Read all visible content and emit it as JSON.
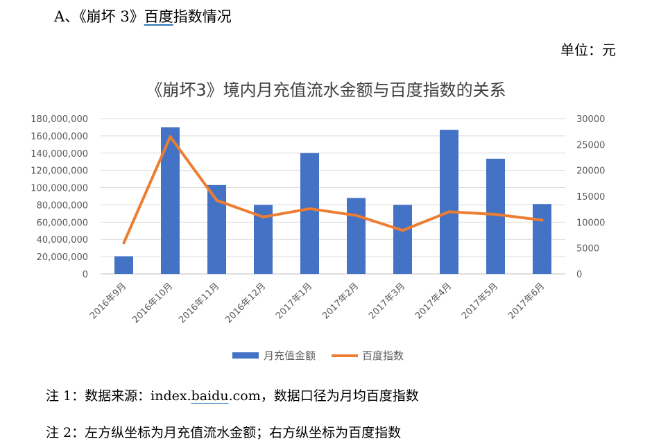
{
  "heading": {
    "prefix": "A、《崩坏 3》",
    "underlined": "百度",
    "suffix": "指数情况"
  },
  "unit_note": "单位：元",
  "notes": {
    "note1": {
      "prefix": "注 1：数据来源：index.",
      "underlined": "baidu",
      "suffix": ".com，数据口径为月均百度指数"
    },
    "note2": "注 2：左方纵坐标为月充值流水金额；右方纵坐标为百度指数"
  },
  "chart_data": {
    "type": "bar",
    "title": "《崩坏3》境内月充值流水金额与百度指数的关系",
    "categories": [
      "2016年9月",
      "2016年10月",
      "2016年11月",
      "2016年12月",
      "2017年1月",
      "2017年2月",
      "2017年3月",
      "2017年4月",
      "2017年5月",
      "2017年6月"
    ],
    "series": [
      {
        "name": "月充值金额",
        "type": "bar",
        "axis": "left",
        "color": "#4472c4",
        "values": [
          20500000,
          170000000,
          103000000,
          80000000,
          140000000,
          88000000,
          80000000,
          167000000,
          133500000,
          81000000
        ]
      },
      {
        "name": "百度指数",
        "type": "line",
        "axis": "right",
        "color": "#ed7d31",
        "values": [
          6000,
          26500,
          14200,
          11000,
          12600,
          11300,
          8400,
          12000,
          11500,
          10400
        ]
      }
    ],
    "y_left": {
      "min": 0,
      "max": 180000000,
      "step": 20000000,
      "tick_labels": [
        "0",
        "20,000,000",
        "40,000,000",
        "60,000,000",
        "80,000,000",
        "100,000,000",
        "120,000,000",
        "140,000,000",
        "160,000,000",
        "180,000,000"
      ]
    },
    "y_right": {
      "min": 0,
      "max": 30000,
      "step": 5000,
      "tick_labels": [
        "0",
        "5000",
        "10000",
        "15000",
        "20000",
        "25000",
        "30000"
      ]
    },
    "grid": true,
    "legend_position": "bottom"
  }
}
